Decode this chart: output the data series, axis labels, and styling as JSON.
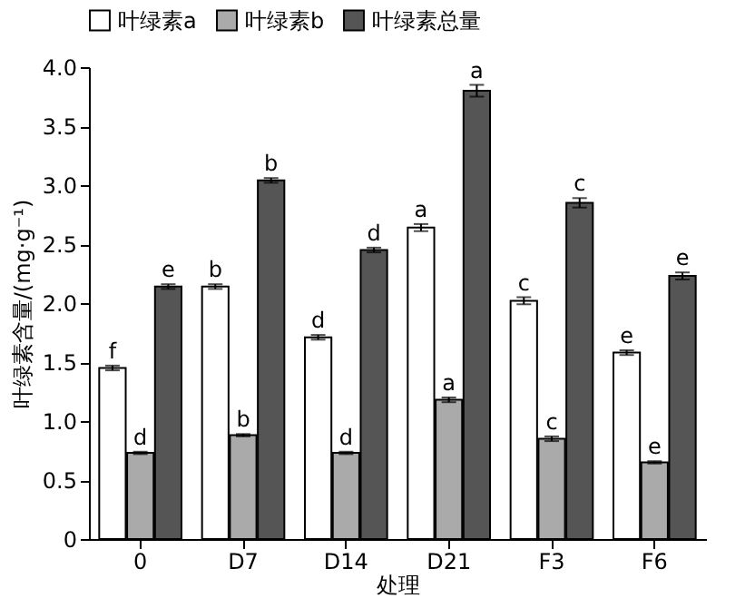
{
  "chart_data": {
    "type": "bar",
    "xlabel": "处理",
    "ylabel": "叶绿素含量/(mg·g⁻¹)",
    "categories": [
      "0",
      "D7",
      "D14",
      "D21",
      "F3",
      "F6"
    ],
    "series": [
      {
        "name": "叶绿素a",
        "color": "#ffffff",
        "values": [
          1.45,
          2.14,
          1.71,
          2.64,
          2.02,
          1.58
        ],
        "errors": [
          0.02,
          0.02,
          0.02,
          0.03,
          0.03,
          0.02
        ],
        "value_labels": [
          "f",
          "b",
          "d",
          "a",
          "c",
          "e"
        ]
      },
      {
        "name": "叶绿素b",
        "color": "#aaaaaa",
        "values": [
          0.73,
          0.88,
          0.73,
          1.18,
          0.85,
          0.65
        ],
        "errors": [
          0.01,
          0.01,
          0.01,
          0.02,
          0.02,
          0.01
        ],
        "value_labels": [
          "d",
          "b",
          "d",
          "a",
          "c",
          "e"
        ]
      },
      {
        "name": "叶绿素总量",
        "color": "#555555",
        "values": [
          2.14,
          3.04,
          2.45,
          3.8,
          2.85,
          2.23
        ],
        "errors": [
          0.02,
          0.02,
          0.02,
          0.05,
          0.04,
          0.03
        ],
        "value_labels": [
          "e",
          "b",
          "d",
          "a",
          "c",
          "e"
        ]
      }
    ],
    "ylim": [
      0,
      4
    ],
    "yticks": [
      0,
      0.5,
      {
        "value": 1,
        "label": "1.0"
      },
      1.5,
      {
        "value": 2,
        "label": "2.0"
      },
      2.5,
      {
        "value": 3,
        "label": "3.0"
      },
      3.5,
      {
        "value": 4,
        "label": "4.0"
      }
    ],
    "grid": false,
    "legend": "top"
  }
}
